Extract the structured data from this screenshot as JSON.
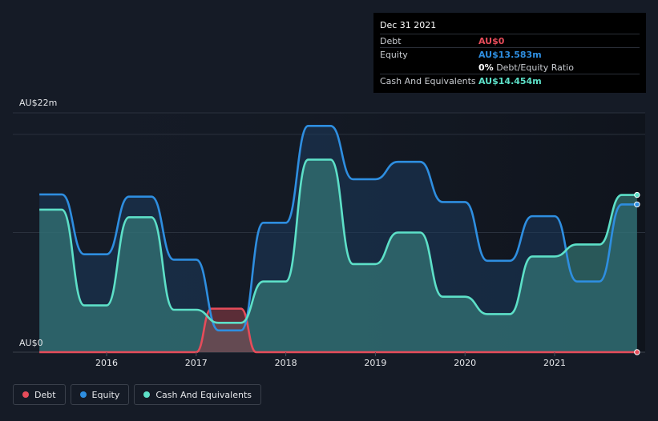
{
  "chart_data": {
    "type": "area",
    "title": "",
    "ylabel": "",
    "xlabel": "",
    "ylim": [
      0,
      22
    ],
    "y_tick_labels": [
      "AU$0",
      "AU$22m"
    ],
    "x_ticks": [
      2016,
      2017,
      2018,
      2019,
      2020,
      2021
    ],
    "x_tick_labels": [
      "2016",
      "2017",
      "2018",
      "2019",
      "2020",
      "2021"
    ],
    "grid": true,
    "legend_placement": "bottom-left",
    "series": [
      {
        "name": "Debt",
        "color": "#e64c5a",
        "x": [
          2015.25,
          2016.75,
          2017.0,
          2017.17,
          2017.5,
          2017.67,
          2018.0,
          2021.92
        ],
        "y": [
          0,
          0,
          0,
          4.0,
          4.0,
          0,
          0,
          0
        ]
      },
      {
        "name": "Equity",
        "color": "#2e8ee0",
        "x": [
          2015.25,
          2015.5,
          2015.75,
          2016.0,
          2016.25,
          2016.5,
          2016.75,
          2017.0,
          2017.25,
          2017.5,
          2017.75,
          2018.0,
          2018.25,
          2018.5,
          2018.75,
          2019.0,
          2019.25,
          2019.5,
          2019.75,
          2020.0,
          2020.25,
          2020.5,
          2020.75,
          2021.0,
          2021.25,
          2021.5,
          2021.75,
          2021.92
        ],
        "y": [
          14.5,
          14.5,
          9.0,
          9.0,
          14.3,
          14.3,
          8.5,
          8.5,
          2.0,
          2.0,
          11.9,
          11.9,
          20.8,
          20.8,
          15.9,
          15.9,
          17.5,
          17.5,
          13.8,
          13.8,
          8.4,
          8.4,
          12.5,
          12.5,
          6.5,
          6.5,
          13.583,
          13.583
        ]
      },
      {
        "name": "Cash And Equivalents",
        "color": "#5de0c8",
        "x": [
          2015.25,
          2015.5,
          2015.75,
          2016.0,
          2016.25,
          2016.5,
          2016.75,
          2017.0,
          2017.25,
          2017.5,
          2017.75,
          2018.0,
          2018.25,
          2018.5,
          2018.75,
          2019.0,
          2019.25,
          2019.5,
          2019.75,
          2020.0,
          2020.25,
          2020.5,
          2020.75,
          2021.0,
          2021.25,
          2021.5,
          2021.75,
          2021.92
        ],
        "y": [
          13.1,
          13.1,
          4.3,
          4.3,
          12.4,
          12.4,
          3.9,
          3.9,
          2.7,
          2.7,
          6.5,
          6.5,
          17.7,
          17.7,
          8.1,
          8.1,
          11.0,
          11.0,
          5.1,
          5.1,
          3.5,
          3.5,
          8.8,
          8.8,
          9.9,
          9.9,
          14.454,
          14.454
        ]
      }
    ]
  },
  "tooltip": {
    "date": "Dec 31 2021",
    "rows": [
      {
        "label": "Debt",
        "value": "AU$0",
        "color": "#e64c5a"
      },
      {
        "label": "Equity",
        "value": "AU$13.583m",
        "color": "#2e8ee0"
      },
      {
        "label": "",
        "ratio_value": "0%",
        "ratio_label": "Debt/Equity Ratio"
      },
      {
        "label": "Cash And Equivalents",
        "value": "AU$14.454m",
        "color": "#5de0c8"
      }
    ]
  },
  "legend": [
    {
      "label": "Debt",
      "color": "#e64c5a"
    },
    {
      "label": "Equity",
      "color": "#2e8ee0"
    },
    {
      "label": "Cash And Equivalents",
      "color": "#5de0c8"
    }
  ]
}
